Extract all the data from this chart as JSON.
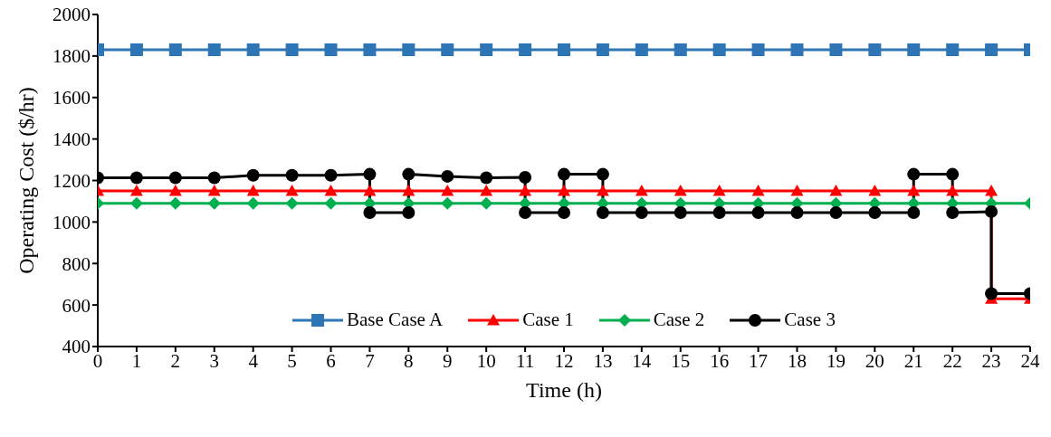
{
  "chart_data": {
    "type": "line",
    "xlabel": "Time (h)",
    "ylabel": "Operating Cost ($/hr)",
    "xlim": [
      0,
      24
    ],
    "xticks": [
      0,
      1,
      2,
      3,
      4,
      5,
      6,
      7,
      8,
      9,
      10,
      11,
      12,
      13,
      14,
      15,
      16,
      17,
      18,
      19,
      20,
      21,
      22,
      23,
      24
    ],
    "ylim": [
      400,
      2000
    ],
    "yticks": [
      400,
      600,
      800,
      1000,
      1200,
      1400,
      1600,
      1800,
      2000
    ],
    "legend": "bottom",
    "line_style": "solid",
    "series": [
      {
        "name": "Base Case A",
        "color": "#2e75b6",
        "marker": "square",
        "x": [
          0,
          1,
          2,
          3,
          4,
          5,
          6,
          7,
          8,
          9,
          10,
          11,
          12,
          13,
          14,
          15,
          16,
          17,
          18,
          19,
          20,
          21,
          22,
          23,
          24
        ],
        "values": [
          1830,
          1830,
          1830,
          1830,
          1830,
          1830,
          1830,
          1830,
          1830,
          1830,
          1830,
          1830,
          1830,
          1830,
          1830,
          1830,
          1830,
          1830,
          1830,
          1830,
          1830,
          1830,
          1830,
          1830,
          1830
        ]
      },
      {
        "name": "Case 1",
        "color": "#ff0000",
        "marker": "triangle",
        "x": [
          0,
          1,
          2,
          3,
          4,
          5,
          6,
          7,
          8,
          9,
          10,
          11,
          12,
          13,
          14,
          15,
          16,
          17,
          18,
          19,
          20,
          21,
          22,
          23,
          23,
          24
        ],
        "values": [
          1150,
          1150,
          1150,
          1150,
          1150,
          1150,
          1150,
          1150,
          1150,
          1150,
          1150,
          1150,
          1150,
          1150,
          1150,
          1150,
          1150,
          1150,
          1150,
          1150,
          1150,
          1150,
          1150,
          1150,
          630,
          630
        ]
      },
      {
        "name": "Case 2",
        "color": "#00b050",
        "marker": "diamond",
        "x": [
          0,
          1,
          2,
          3,
          4,
          5,
          6,
          7,
          8,
          9,
          10,
          11,
          12,
          13,
          14,
          15,
          16,
          17,
          18,
          19,
          20,
          21,
          22,
          23,
          24
        ],
        "values": [
          1090,
          1090,
          1090,
          1090,
          1090,
          1090,
          1090,
          1090,
          1090,
          1090,
          1090,
          1090,
          1090,
          1090,
          1090,
          1090,
          1090,
          1090,
          1090,
          1090,
          1090,
          1090,
          1090,
          1090,
          1090
        ]
      },
      {
        "name": "Case 3",
        "color": "#000000",
        "marker": "circle",
        "x": [
          0,
          1,
          2,
          3,
          4,
          5,
          6,
          7,
          7,
          8,
          8,
          9,
          10,
          11,
          11,
          12,
          12,
          13,
          13,
          14,
          15,
          16,
          17,
          18,
          19,
          20,
          21,
          21,
          22,
          22,
          23,
          23,
          24
        ],
        "values": [
          1213,
          1213,
          1213,
          1213,
          1225,
          1225,
          1225,
          1230,
          1045,
          1045,
          1230,
          1220,
          1213,
          1215,
          1045,
          1045,
          1230,
          1230,
          1045,
          1045,
          1045,
          1045,
          1045,
          1045,
          1045,
          1045,
          1045,
          1230,
          1230,
          1045,
          1050,
          655,
          655
        ]
      }
    ]
  }
}
